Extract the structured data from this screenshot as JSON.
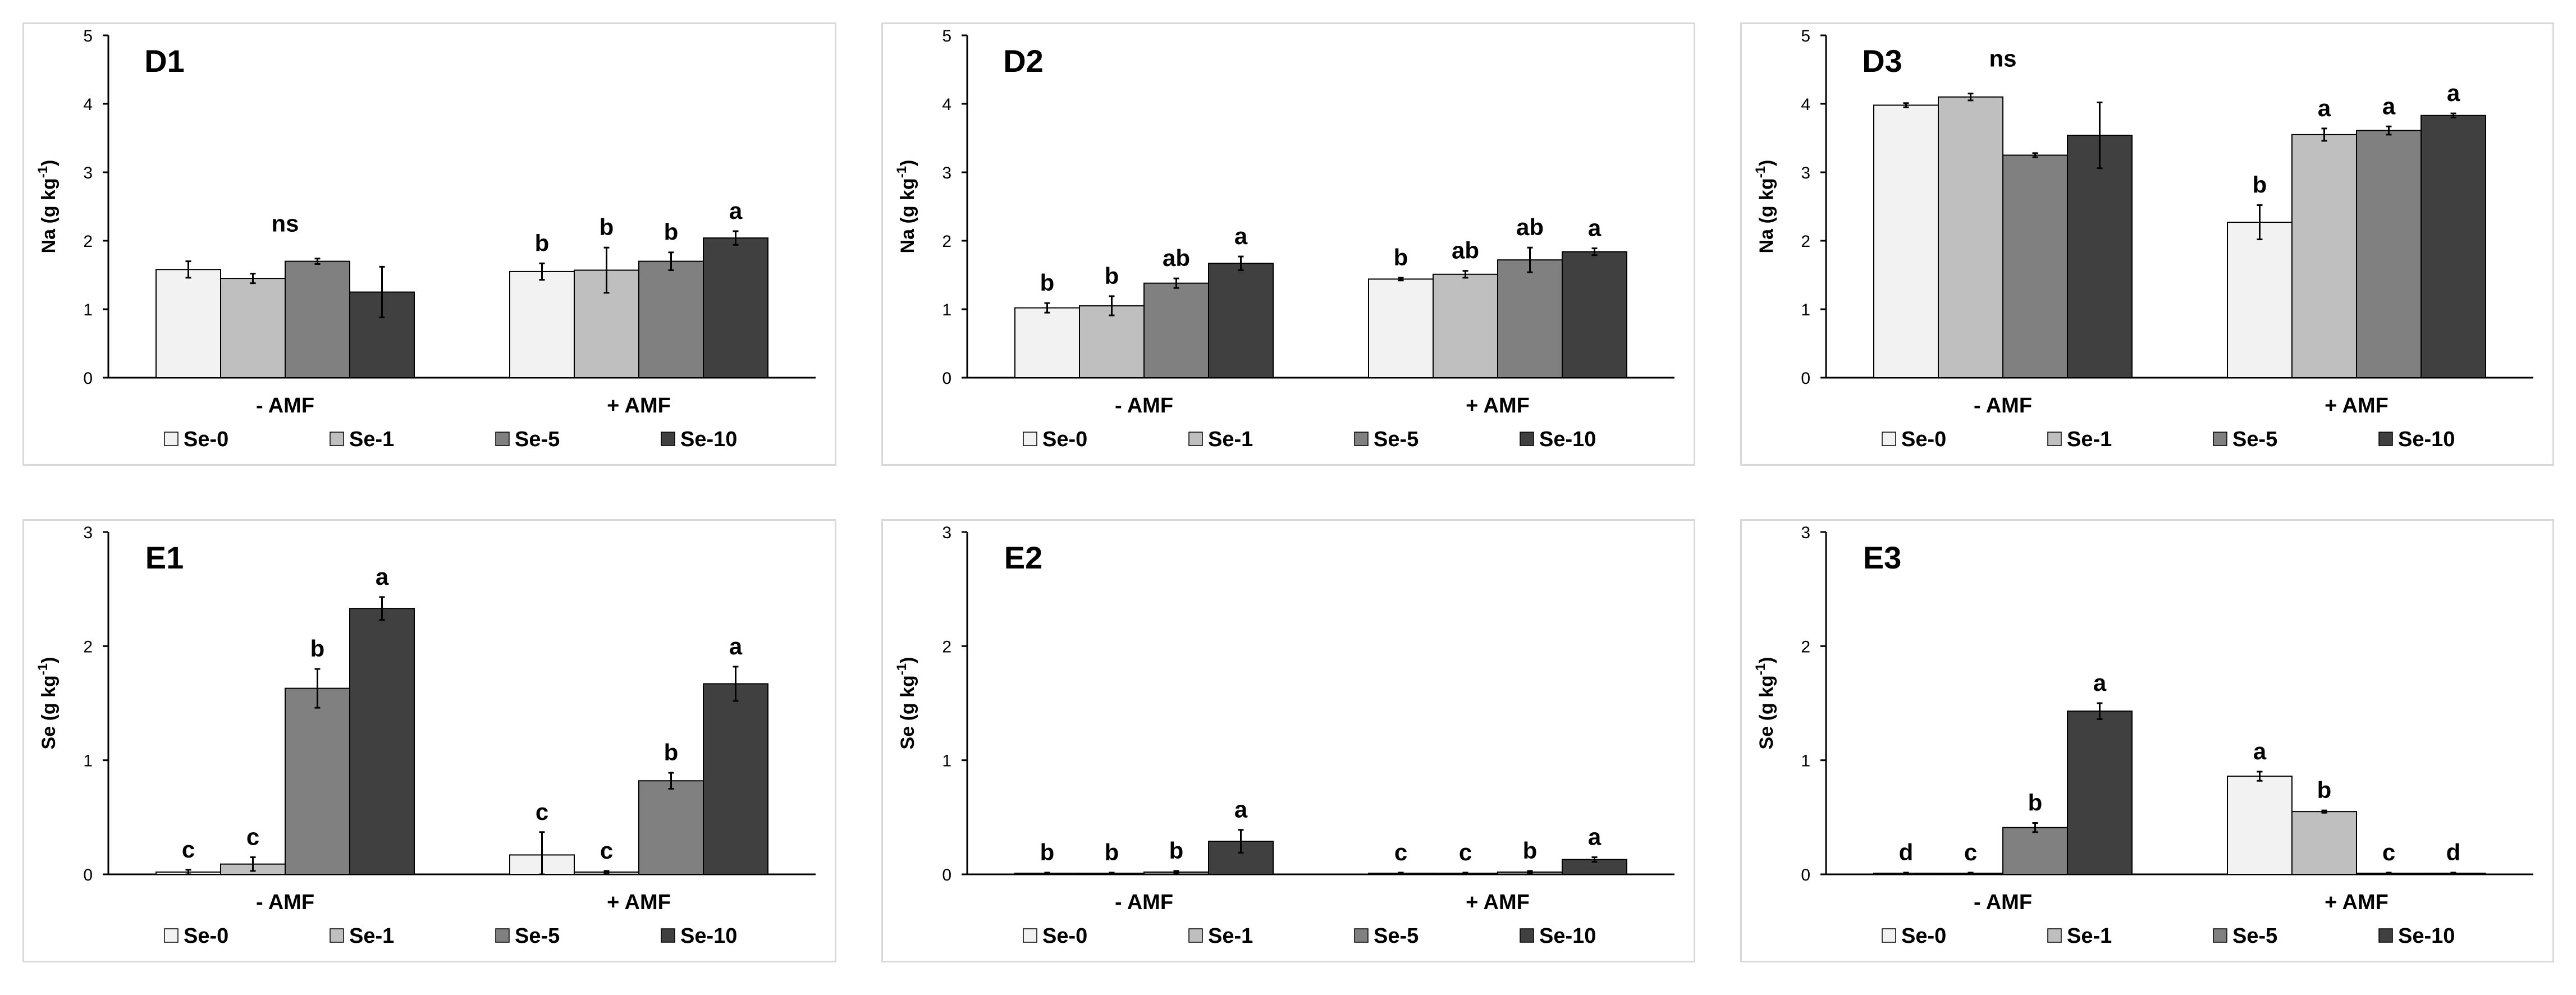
{
  "figure": {
    "series_names": [
      "Se-0",
      "Se-1",
      "Se-5",
      "Se-10"
    ],
    "series_colors": [
      "#f2f2f2",
      "#bfbfbf",
      "#808080",
      "#404040"
    ]
  },
  "chart_data": [
    {
      "id": "D1",
      "title": "D1",
      "type": "bar",
      "ylabel": "Na (g kg",
      "ylabel_sup": "-1",
      "ylabel_tail": ")",
      "ylim": [
        0,
        5
      ],
      "yticks": [
        0,
        1,
        2,
        3,
        4,
        5
      ],
      "categories": [
        "- AMF",
        "+ AMF"
      ],
      "series": [
        {
          "name": "Se-0",
          "values": [
            1.58,
            1.55
          ],
          "errors": [
            0.12,
            0.12
          ]
        },
        {
          "name": "Se-1",
          "values": [
            1.45,
            1.57
          ],
          "errors": [
            0.07,
            0.33
          ]
        },
        {
          "name": "Se-5",
          "values": [
            1.7,
            1.7
          ],
          "errors": [
            0.04,
            0.13
          ]
        },
        {
          "name": "Se-10",
          "values": [
            1.25,
            2.04
          ],
          "errors": [
            0.37,
            0.1
          ]
        }
      ],
      "group_labels": [
        "ns",
        ""
      ],
      "bar_labels": [
        [
          "",
          "",
          "",
          ""
        ],
        [
          "b",
          "b",
          "b",
          "a"
        ]
      ]
    },
    {
      "id": "D2",
      "title": "D2",
      "type": "bar",
      "ylabel": "Na (g kg",
      "ylabel_sup": "-1",
      "ylabel_tail": ")",
      "ylim": [
        0,
        5
      ],
      "yticks": [
        0,
        1,
        2,
        3,
        4,
        5
      ],
      "categories": [
        "- AMF",
        "+ AMF"
      ],
      "series": [
        {
          "name": "Se-0",
          "values": [
            1.02,
            1.44
          ],
          "errors": [
            0.07,
            0.02
          ]
        },
        {
          "name": "Se-1",
          "values": [
            1.05,
            1.51
          ],
          "errors": [
            0.14,
            0.05
          ]
        },
        {
          "name": "Se-5",
          "values": [
            1.38,
            1.72
          ],
          "errors": [
            0.07,
            0.18
          ]
        },
        {
          "name": "Se-10",
          "values": [
            1.67,
            1.84
          ],
          "errors": [
            0.1,
            0.05
          ]
        }
      ],
      "group_labels": [
        "",
        ""
      ],
      "bar_labels": [
        [
          "b",
          "b",
          "ab",
          "a"
        ],
        [
          "b",
          "ab",
          "ab",
          "a"
        ]
      ]
    },
    {
      "id": "D3",
      "title": "D3",
      "type": "bar",
      "ylabel": "Na (g kg",
      "ylabel_sup": "-1",
      "ylabel_tail": ")",
      "ylim": [
        0,
        5
      ],
      "yticks": [
        0,
        1,
        2,
        3,
        4,
        5
      ],
      "categories": [
        "- AMF",
        "+ AMF"
      ],
      "series": [
        {
          "name": "Se-0",
          "values": [
            3.98,
            2.27
          ],
          "errors": [
            0.03,
            0.25
          ]
        },
        {
          "name": "Se-1",
          "values": [
            4.1,
            3.55
          ],
          "errors": [
            0.05,
            0.09
          ]
        },
        {
          "name": "Se-5",
          "values": [
            3.25,
            3.61
          ],
          "errors": [
            0.03,
            0.06
          ]
        },
        {
          "name": "Se-10",
          "values": [
            3.54,
            3.83
          ],
          "errors": [
            0.48,
            0.03
          ]
        }
      ],
      "group_labels": [
        "ns",
        ""
      ],
      "bar_labels": [
        [
          "",
          "",
          "",
          ""
        ],
        [
          "b",
          "a",
          "a",
          "a"
        ]
      ]
    },
    {
      "id": "E1",
      "title": "E1",
      "type": "bar",
      "ylabel": "Se (g kg",
      "ylabel_sup": "-1",
      "ylabel_tail": ")",
      "ylim": [
        0,
        3
      ],
      "yticks": [
        0,
        1,
        2,
        3
      ],
      "categories": [
        "- AMF",
        "+ AMF"
      ],
      "series": [
        {
          "name": "Se-0",
          "values": [
            0.02,
            0.17
          ],
          "errors": [
            0.02,
            0.2
          ]
        },
        {
          "name": "Se-1",
          "values": [
            0.09,
            0.02
          ],
          "errors": [
            0.06,
            0.01
          ]
        },
        {
          "name": "Se-5",
          "values": [
            1.63,
            0.82
          ],
          "errors": [
            0.17,
            0.07
          ]
        },
        {
          "name": "Se-10",
          "values": [
            2.33,
            1.67
          ],
          "errors": [
            0.1,
            0.15
          ]
        }
      ],
      "group_labels": [
        "",
        ""
      ],
      "bar_labels": [
        [
          "c",
          "c",
          "b",
          "a"
        ],
        [
          "c",
          "c",
          "b",
          "a"
        ]
      ]
    },
    {
      "id": "E2",
      "title": "E2",
      "type": "bar",
      "ylabel": "Se (g kg",
      "ylabel_sup": "-1",
      "ylabel_tail": ")",
      "ylim": [
        0,
        3
      ],
      "yticks": [
        0,
        1,
        2,
        3
      ],
      "categories": [
        "- AMF",
        "+ AMF"
      ],
      "series": [
        {
          "name": "Se-0",
          "values": [
            0.01,
            0.01
          ],
          "errors": [
            0.005,
            0.005
          ]
        },
        {
          "name": "Se-1",
          "values": [
            0.01,
            0.01
          ],
          "errors": [
            0.005,
            0.005
          ]
        },
        {
          "name": "Se-5",
          "values": [
            0.02,
            0.02
          ],
          "errors": [
            0.01,
            0.01
          ]
        },
        {
          "name": "Se-10",
          "values": [
            0.29,
            0.13
          ],
          "errors": [
            0.1,
            0.02
          ]
        }
      ],
      "group_labels": [
        "",
        ""
      ],
      "bar_labels": [
        [
          "b",
          "b",
          "b",
          "a"
        ],
        [
          "c",
          "c",
          "b",
          "a"
        ]
      ]
    },
    {
      "id": "E3",
      "title": "E3",
      "type": "bar",
      "ylabel": "Se (g kg",
      "ylabel_sup": "-1",
      "ylabel_tail": ")",
      "ylim": [
        0,
        3
      ],
      "yticks": [
        0,
        1,
        2,
        3
      ],
      "categories": [
        "- AMF",
        "+ AMF"
      ],
      "series": [
        {
          "name": "Se-0",
          "values": [
            0.01,
            0.86
          ],
          "errors": [
            0.005,
            0.04
          ]
        },
        {
          "name": "Se-1",
          "values": [
            0.01,
            0.55
          ],
          "errors": [
            0.005,
            0.01
          ]
        },
        {
          "name": "Se-5",
          "values": [
            0.41,
            0.01
          ],
          "errors": [
            0.04,
            0.005
          ]
        },
        {
          "name": "Se-10",
          "values": [
            1.43,
            0.01
          ],
          "errors": [
            0.07,
            0.005
          ]
        }
      ],
      "group_labels": [
        "",
        ""
      ],
      "bar_labels": [
        [
          "d",
          "c",
          "b",
          "a"
        ],
        [
          "a",
          "b",
          "c",
          "d"
        ]
      ]
    }
  ]
}
